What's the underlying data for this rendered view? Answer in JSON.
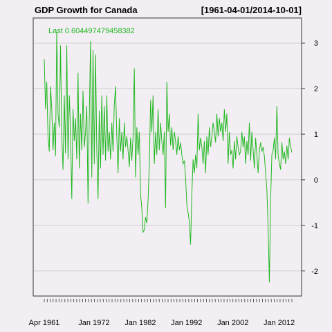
{
  "chart_data": {
    "type": "line",
    "title": "GDP Growth for Canada",
    "range_label": "[1961-04-01/2014-10-01]",
    "last_label": "Last 0.604497479458382",
    "x_tick_labels": [
      "Apr 1961",
      "Jan 1972",
      "Jan 1982",
      "Jan 1992",
      "Jan 2002",
      "Jan 2012"
    ],
    "y_ticks": [
      -2,
      -1,
      0,
      1,
      2,
      3
    ],
    "ylim": [
      -2.55,
      3.55
    ],
    "x_start": "1961-04-01",
    "x_end": "2014-10-01",
    "grid": true,
    "series": [
      {
        "color": "#22b822",
        "values": [
          2.65,
          1.55,
          2.15,
          0.95,
          0.62,
          2.05,
          1.55,
          0.65,
          1.25,
          0.52,
          3.25,
          1.45,
          1.15,
          2.95,
          0.95,
          0.22,
          1.85,
          0.58,
          2.95,
          0.45,
          1.85,
          1.05,
          -0.42,
          1.55,
          0.85,
          1.35,
          0.45,
          2.35,
          0.25,
          1.45,
          0.65,
          1.95,
          0.72,
          1.05,
          1.62,
          -0.52,
          1.35,
          3.05,
          0.05,
          2.85,
          0.35,
          2.75,
          0.65,
          -0.42,
          1.52,
          0.25,
          1.85,
          0.55,
          1.62,
          0.42,
          1.85,
          0.62,
          1.05,
          0.45,
          1.25,
          0.62,
          1.65,
          2.05,
          0.95,
          0.15,
          1.35,
          0.62,
          1.05,
          0.45,
          1.25,
          0.72,
          0.95,
          0.65,
          0.28,
          0.92,
          0.42,
          0.95,
          2.45,
          0.05,
          1.15,
          0.55,
          1.05,
          -0.32,
          -0.62,
          -1.15,
          -1.1,
          -0.82,
          -0.95,
          -0.45,
          0.32,
          1.75,
          1.05,
          1.85,
          0.35,
          1.05,
          0.55,
          1.55,
          0.65,
          1.25,
          0.85,
          0.55,
          1.05,
          -0.62,
          2.15,
          1.05,
          1.45,
          0.75,
          1.15,
          0.65,
          1.05,
          0.85,
          0.55,
          0.95,
          0.65,
          0.82,
          0.55,
          0.35,
          0.42,
          0.05,
          -0.55,
          -0.72,
          -0.92,
          -1.42,
          -0.32,
          0.45,
          0.15,
          0.55,
          0.25,
          1.45,
          0.65,
          0.92,
          0.72,
          0.35,
          0.85,
          0.15,
          0.95,
          0.55,
          1.15,
          0.72,
          0.95,
          1.25,
          1.05,
          0.82,
          1.45,
          0.95,
          1.35,
          1.05,
          1.25,
          0.85,
          1.55,
          1.05,
          1.45,
          0.35,
          1.05,
          0.55,
          0.65,
          0.25,
          0.85,
          0.45,
          0.95,
          0.72,
          0.55,
          0.62,
          1.05,
          0.72,
          0.95,
          0.35,
          0.85,
          0.55,
          1.25,
          0.42,
          1.05,
          0.65,
          0.25,
          0.92,
          0.55,
          0.15,
          0.65,
          0.82,
          0.62,
          0.72,
          0.52,
          0.15,
          -0.22,
          -1.05,
          -2.25,
          -0.45,
          0.55,
          0.65,
          0.92,
          0.45,
          1.62,
          0.55,
          0.35,
          0.22,
          0.82,
          0.45,
          0.62,
          0.35,
          0.75,
          0.45,
          0.92,
          0.72,
          0.6
        ]
      }
    ]
  }
}
